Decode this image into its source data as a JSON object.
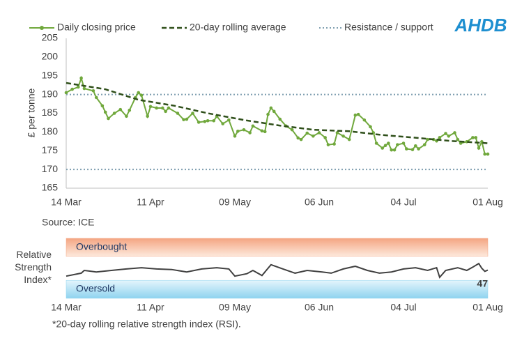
{
  "chart_data": [
    {
      "type": "line",
      "logo": "AHDB",
      "y_label": "£ per tonne",
      "source": "Source: ICE",
      "xlim": [
        0,
        140
      ],
      "xticks": [
        {
          "value": 0,
          "label": "14 Mar"
        },
        {
          "value": 28,
          "label": "11 Apr"
        },
        {
          "value": 56,
          "label": "09 May"
        },
        {
          "value": 84,
          "label": "06 Jun"
        },
        {
          "value": 112,
          "label": "04 Jul"
        },
        {
          "value": 140,
          "label": "01 Aug"
        }
      ],
      "ylim": [
        165,
        205
      ],
      "yticks": [
        165,
        170,
        175,
        180,
        185,
        190,
        195,
        200,
        205
      ],
      "legend": "top",
      "series": [
        {
          "name": "Daily closing price",
          "color": "#70a83c",
          "style": "solid",
          "marker": true,
          "x": [
            0,
            2,
            4,
            5,
            6,
            9,
            10,
            12,
            13,
            14,
            16,
            18,
            20,
            21,
            23,
            24,
            25,
            27,
            28,
            30,
            32,
            33,
            34,
            37,
            39,
            40,
            42,
            44,
            46,
            47,
            49,
            50,
            52,
            54,
            56,
            57,
            59,
            61,
            62,
            65,
            66,
            67,
            68,
            69,
            71,
            73,
            75,
            77,
            78,
            80,
            82,
            84,
            86,
            87,
            89,
            90,
            92,
            94,
            96,
            97,
            99,
            101,
            102,
            103,
            105,
            106,
            107,
            108,
            109,
            110,
            112,
            113,
            115,
            116,
            117,
            119,
            120,
            122,
            123,
            124,
            126,
            127,
            129,
            130,
            131,
            133,
            135,
            136,
            137,
            138,
            139,
            140
          ],
          "values": [
            190.5,
            191.4,
            192,
            194.4,
            191.6,
            191,
            189.2,
            187,
            185.3,
            183.6,
            185,
            186,
            184.2,
            185.8,
            189.2,
            190.5,
            189.8,
            184.2,
            186.8,
            186.4,
            186.4,
            185.5,
            186.4,
            185,
            183.3,
            183.4,
            185,
            182.6,
            182.8,
            183,
            183,
            184.2,
            182.2,
            183.2,
            178.9,
            180.2,
            180.6,
            179.8,
            181.6,
            180.3,
            180.1,
            184.7,
            186.4,
            185.5,
            183.4,
            181.6,
            180.6,
            178.4,
            178,
            179.7,
            178.9,
            179.8,
            178.5,
            176.6,
            176.8,
            179.8,
            178.9,
            178,
            184.5,
            184.7,
            183.2,
            181.4,
            179.8,
            177,
            175.7,
            176.4,
            177,
            175.2,
            175.2,
            176.6,
            177,
            175.5,
            175.3,
            176.3,
            175.5,
            176.6,
            178,
            178,
            177.6,
            178.5,
            179.6,
            178.9,
            179.8,
            178,
            177,
            177.4,
            178.5,
            178.5,
            175.7,
            177.4,
            174.1,
            174.1
          ]
        },
        {
          "name": "20-day rolling average",
          "color": "#2f4f1a",
          "style": "dashed",
          "marker": false,
          "x": [
            0,
            13,
            24,
            36,
            47,
            59,
            71,
            82,
            94,
            105,
            117,
            128,
            140
          ],
          "values": [
            193.1,
            191.4,
            188.6,
            187,
            185,
            183.2,
            181.7,
            180.6,
            180.2,
            179.2,
            178.4,
            177.6,
            177
          ]
        }
      ],
      "reference_lines": {
        "name": "Resistance / support",
        "color": "#7f9fb0",
        "values": [
          190,
          170
        ]
      }
    },
    {
      "type": "line",
      "y_label": "Relative Strength Index*",
      "footnote": "*20-day rolling relative strength index (RSI).",
      "xlim": [
        0,
        140
      ],
      "xticks": [
        {
          "value": 0,
          "label": "14 Mar"
        },
        {
          "value": 28,
          "label": "11 Apr"
        },
        {
          "value": 56,
          "label": "09 May"
        },
        {
          "value": 84,
          "label": "06 Jun"
        },
        {
          "value": 112,
          "label": "04 Jul"
        },
        {
          "value": 140,
          "label": "01 Aug"
        }
      ],
      "ylim": [
        0,
        100
      ],
      "bands": [
        {
          "label": "Overbought",
          "range": [
            70,
            100
          ],
          "color": "#f4a582"
        },
        {
          "label": "Oversold",
          "range": [
            0,
            30
          ],
          "color": "#8fd3ef"
        }
      ],
      "series": [
        {
          "color": "#404040",
          "x": [
            0,
            5,
            6,
            10,
            15,
            20,
            25,
            30,
            35,
            40,
            45,
            50,
            54,
            56,
            60,
            62,
            65,
            68,
            72,
            76,
            80,
            85,
            88,
            92,
            96,
            100,
            104,
            108,
            112,
            116,
            120,
            123,
            124,
            126,
            130,
            133,
            135,
            137,
            138,
            139,
            140
          ],
          "values": [
            37,
            42,
            46.5,
            44,
            46.5,
            49,
            51,
            49,
            48,
            44,
            49,
            51,
            49,
            37,
            41,
            46.5,
            38,
            56,
            49,
            42,
            46.5,
            44,
            42,
            49,
            53.5,
            46.5,
            42,
            44,
            49,
            51,
            46.5,
            51,
            35,
            46.5,
            51,
            46.5,
            52,
            58,
            50,
            45,
            47
          ]
        }
      ]
    }
  ]
}
